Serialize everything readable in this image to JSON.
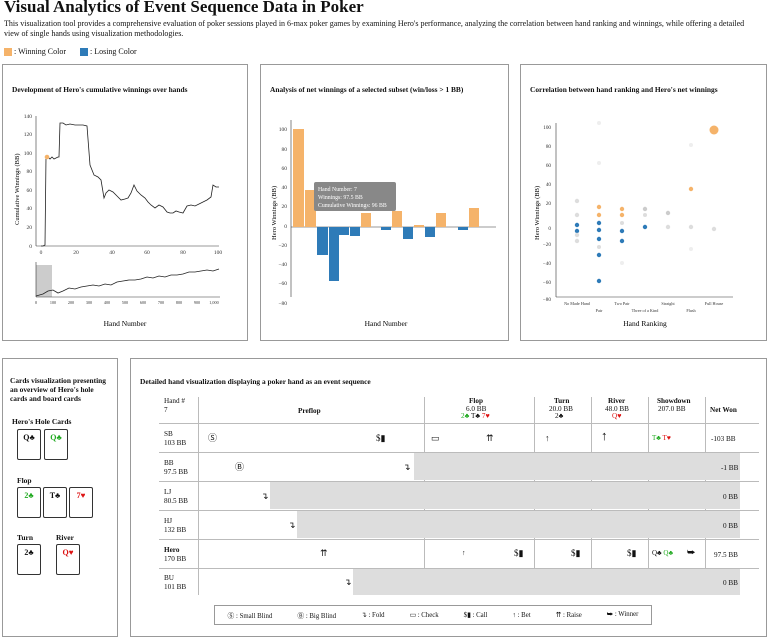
{
  "header": {
    "title": "Visual Analytics of Event Sequence Data in Poker",
    "description": "This visualization tool provides a comprehensive evaluation of poker sessions played in 6-max poker games by examining Hero's performance, analyzing the correlation between hand ranking and winnings, while offering a detailed view of single hands using visualization methodologies.",
    "legend_win": ": Winning Color",
    "legend_lose": ": Losing Color",
    "win_color": "#f5b36a",
    "lose_color": "#2e7bb8"
  },
  "cumulative": {
    "title": "Development of Hero's cumulative winnings over hands",
    "ylabel": "Cumulative Winnings (BB)",
    "xlabel": "Hand Number",
    "yticks": [
      "140",
      "120",
      "100",
      "80",
      "60",
      "40",
      "20",
      "0"
    ],
    "xticks_top": [
      "0",
      "20",
      "40",
      "60",
      "80",
      "100"
    ],
    "xticks_bottom": [
      "0",
      "100",
      "200",
      "300",
      "400",
      "500",
      "600",
      "700",
      "800",
      "900",
      "1,000"
    ]
  },
  "subset": {
    "title": "Analysis of net winnings of a selected subset (win/loss > 1 BB)",
    "ylabel": "Hero Winnings (BB)",
    "xlabel": "Hand Number",
    "yticks": [
      "100",
      "80",
      "60",
      "40",
      "20",
      "0",
      "−20",
      "−40",
      "−60",
      "−80"
    ],
    "tooltip": [
      "Hand Number: 7",
      "Winnings: 97.5 BB",
      "Cumulative Winnings: 96 BB"
    ]
  },
  "correlation": {
    "title": "Correlation between hand ranking and Hero's net winnings",
    "ylabel": "Hero Winnings (BB)",
    "xlabel": "Hand Ranking",
    "yticks": [
      "100",
      "80",
      "60",
      "40",
      "20",
      "0",
      "−20",
      "−40",
      "−60",
      "−80"
    ],
    "categories_top": [
      "No Made Hand",
      "Two Pair",
      "Straight",
      "Full House"
    ],
    "categories_bottom": [
      "Pair",
      "Three of a Kind",
      "Flush"
    ]
  },
  "cards": {
    "title": "Cards visualization presenting an overview of Hero's hole cards and board cards",
    "hole_label": "Hero's Hole Cards",
    "hole": [
      {
        "r": "Q",
        "s": "♣",
        "c": "#111"
      },
      {
        "r": "Q",
        "s": "♣",
        "c": "#2a2"
      }
    ],
    "flop_label": "Flop",
    "flop": [
      {
        "r": "2",
        "s": "♣",
        "c": "#2a2"
      },
      {
        "r": "T",
        "s": "♣",
        "c": "#111"
      },
      {
        "r": "7",
        "s": "♥",
        "c": "#d11"
      }
    ],
    "turn_label": "Turn",
    "turn": [
      {
        "r": "2",
        "s": "♣",
        "c": "#111"
      }
    ],
    "river_label": "River",
    "river": [
      {
        "r": "Q",
        "s": "♥",
        "c": "#d11"
      }
    ]
  },
  "hand": {
    "title": "Detailed hand visualization displaying a poker hand as an event sequence",
    "hand_label": "Hand #",
    "hand_no": "7",
    "col_preflop": "Preflop",
    "col_flop": "Flop",
    "flop_pot": "6.0 BB",
    "col_turn": "Turn",
    "turn_pot": "20.0 BB",
    "turn_card": "2♣",
    "col_river": "River",
    "river_pot": "48.0 BB",
    "river_card": "Q♥",
    "col_showdown": "Showdown",
    "showdown_pot": "207.0 BB",
    "col_net": "Net Won",
    "players": [
      {
        "pos": "SB",
        "stack": "103 BB",
        "net": "-103 BB"
      },
      {
        "pos": "BB",
        "stack": "97.5 BB",
        "net": "-1 BB"
      },
      {
        "pos": "LJ",
        "stack": "80.5 BB",
        "net": "0 BB"
      },
      {
        "pos": "HJ",
        "stack": "132 BB",
        "net": "0 BB"
      },
      {
        "pos": "Hero",
        "stack": "170 BB",
        "net": "97.5 BB"
      },
      {
        "pos": "BU",
        "stack": "101 BB",
        "net": "0 BB"
      }
    ],
    "legend": [
      ": Small Blind",
      ": Big Blind",
      ": Fold",
      ": Check",
      ": Call",
      ": Bet",
      ": Raise",
      ": Winner"
    ]
  }
}
